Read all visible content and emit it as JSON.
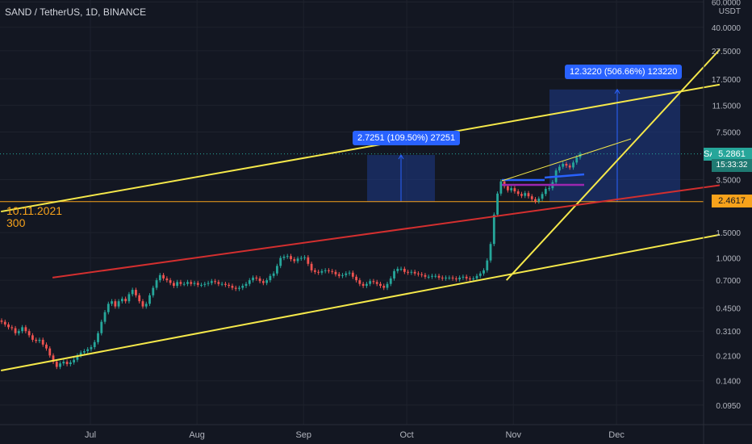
{
  "header": {
    "symbol_title": "SAND / TetherUS, 1D, BINANCE",
    "currency_label": "USDT"
  },
  "annotation": {
    "date": "10.11.2021",
    "value": "300"
  },
  "tags": {
    "symbol": "SANDUSDT",
    "last_price": "5.2861",
    "countdown": "15:33:32",
    "horizontal_level": "2.4617"
  },
  "measures": [
    {
      "label": "2.7251 (109.50%) 27251"
    },
    {
      "label": "12.3220 (506.66%) 123220"
    }
  ],
  "colors": {
    "background": "#131722",
    "up_candle": "#26a69a",
    "down_candle": "#ef5350",
    "yellow_line": "#f5e84a",
    "red_line": "#d32f2f",
    "orange_level": "#f7a21b",
    "measure_fill": "#1e3a8a",
    "measure_accent": "#2962ff"
  },
  "chart_data": {
    "type": "candlestick",
    "scale": "log",
    "y_ticks": [
      "60.0000",
      "40.0000",
      "27.5000",
      "17.5000",
      "11.5000",
      "7.5000",
      "3.5000",
      "2.4617",
      "1.5000",
      "1.0000",
      "0.7000",
      "0.4500",
      "0.3100",
      "0.2100",
      "0.1400",
      "0.0950"
    ],
    "x_ticks": [
      "Jul",
      "Aug",
      "Sep",
      "Oct",
      "Nov",
      "Dec"
    ],
    "last_price": 5.2861,
    "horizontal_level": 2.4617,
    "candles_close": [
      0.36,
      0.345,
      0.33,
      0.325,
      0.3,
      0.31,
      0.33,
      0.31,
      0.29,
      0.27,
      0.265,
      0.27,
      0.25,
      0.235,
      0.21,
      0.19,
      0.175,
      0.185,
      0.19,
      0.183,
      0.188,
      0.196,
      0.21,
      0.22,
      0.225,
      0.232,
      0.24,
      0.26,
      0.3,
      0.36,
      0.42,
      0.48,
      0.5,
      0.46,
      0.5,
      0.52,
      0.5,
      0.56,
      0.6,
      0.55,
      0.5,
      0.46,
      0.48,
      0.55,
      0.62,
      0.7,
      0.76,
      0.72,
      0.7,
      0.67,
      0.64,
      0.68,
      0.66,
      0.66,
      0.68,
      0.66,
      0.67,
      0.65,
      0.65,
      0.66,
      0.67,
      0.69,
      0.68,
      0.66,
      0.66,
      0.65,
      0.64,
      0.62,
      0.61,
      0.62,
      0.64,
      0.66,
      0.7,
      0.73,
      0.72,
      0.69,
      0.67,
      0.7,
      0.75,
      0.78,
      0.88,
      1.0,
      1.02,
      1.03,
      0.98,
      0.95,
      0.99,
      1.0,
      1.01,
      0.91,
      0.82,
      0.8,
      0.79,
      0.81,
      0.82,
      0.81,
      0.8,
      0.77,
      0.75,
      0.76,
      0.78,
      0.79,
      0.74,
      0.7,
      0.66,
      0.64,
      0.66,
      0.69,
      0.68,
      0.66,
      0.64,
      0.62,
      0.66,
      0.72,
      0.81,
      0.84,
      0.84,
      0.8,
      0.79,
      0.8,
      0.78,
      0.77,
      0.76,
      0.74,
      0.74,
      0.75,
      0.75,
      0.73,
      0.72,
      0.73,
      0.73,
      0.72,
      0.71,
      0.73,
      0.74,
      0.72,
      0.71,
      0.72,
      0.75,
      0.78,
      0.82,
      0.96,
      1.25,
      2.0,
      2.8,
      3.4,
      3.15,
      2.95,
      3.05,
      2.9,
      2.78,
      2.7,
      2.82,
      2.68,
      2.56,
      2.47,
      2.58,
      2.78,
      3.02,
      3.05,
      3.36,
      4.05,
      4.3,
      4.5,
      4.38,
      4.25,
      4.6,
      5.0,
      5.29
    ],
    "lines": [
      {
        "name": "",
        "color": "yellow",
        "points": [
          [
            "2021-06-05",
            0.165
          ],
          [
            "2021-12-31",
            1.45
          ]
        ]
      },
      {
        "name": "",
        "color": "yellow",
        "points": [
          [
            "2021-06-05",
            2.1
          ],
          [
            "2021-12-31",
            16
          ]
        ]
      },
      {
        "name": "",
        "color": "yellow",
        "points": [
          [
            "2021-10-30",
            0.7
          ],
          [
            "2021-12-31",
            28
          ]
        ]
      },
      {
        "name": "",
        "color": "red",
        "points": [
          [
            "2021-06-20",
            0.73
          ],
          [
            "2021-12-31",
            3.2
          ]
        ]
      }
    ],
    "measures": [
      {
        "label": "2.7251 (109.50%) 27251",
        "from": 2.4617,
        "to": 5.19
      },
      {
        "label": "12.3220 (506.66%) 123220",
        "from": 2.4617,
        "to": 14.8
      }
    ]
  }
}
